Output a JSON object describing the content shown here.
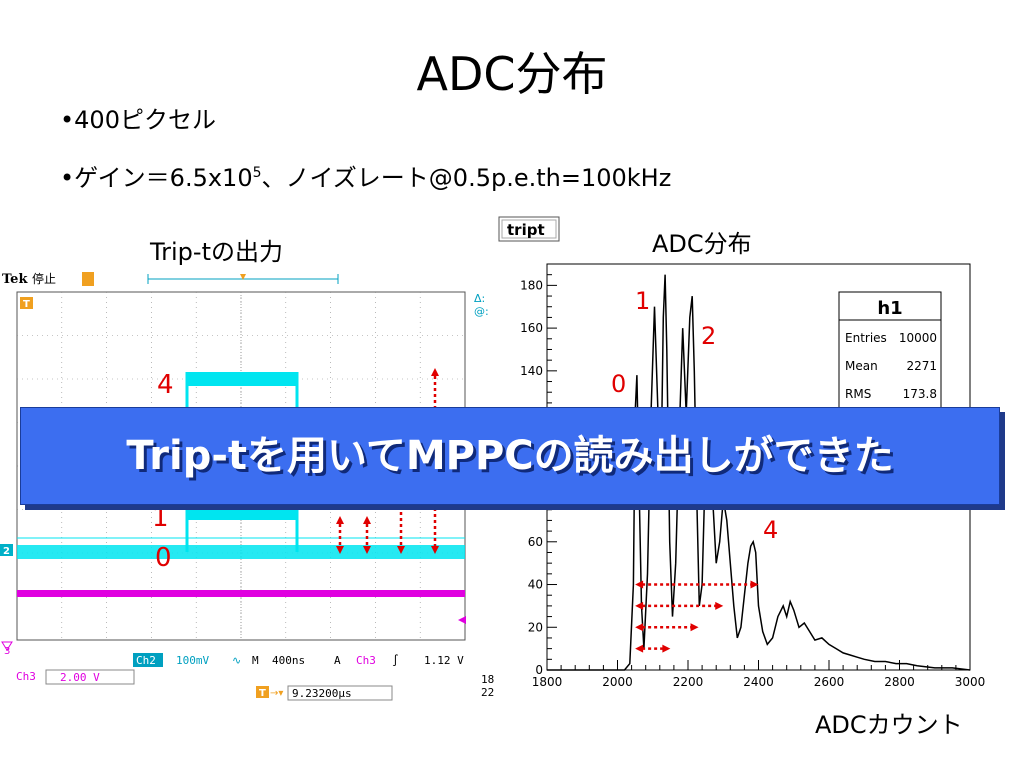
{
  "slide": {
    "title": "ADC分布",
    "bullets": [
      {
        "text": "•400ピクセル"
      },
      {
        "prefix": "•ゲイン＝6.5x10",
        "sup": "5",
        "suffix": "、ノイズレート@0.5p.e.th=100kHz"
      }
    ]
  },
  "oscilloscope": {
    "caption": "Trip-tの出力",
    "brand": "Tek",
    "status": "停止",
    "labels": [
      "0",
      "1",
      "4"
    ],
    "ch1_marker": "2",
    "ch3_marker": "3",
    "trigger_marker": "T",
    "readout_right_top": "Δ:",
    "readout_right_bottom": "@:",
    "ch2_label": "Ch2",
    "ch2_scale": "100mV",
    "ch2_coupling": "∿",
    "time_prefix": "M",
    "time_scale": "400ns",
    "trigger_mode": "A",
    "trig_channel": "Ch3",
    "trig_slope": "∫",
    "trig_level": "1.12 V",
    "ch3_label": "Ch3",
    "ch3_scale": "2.00 V",
    "position_label": "T",
    "position_value": "9.23200μs",
    "date_top": "18",
    "date_bottom": "22",
    "colors": {
      "cyan": "#00e5f0",
      "magenta": "#e000e0",
      "grid": "#8c8c8c"
    }
  },
  "histogram": {
    "caption": "ADC分布",
    "tag": "tript",
    "xunit": "ADCカウント",
    "stats_title": "h1",
    "stats": [
      {
        "label": "Entries",
        "value": "10000"
      },
      {
        "label": "Mean",
        "value": "2271"
      },
      {
        "label": "RMS",
        "value": "173.8"
      }
    ],
    "peak_labels": [
      "0",
      "1",
      "2",
      "4"
    ]
  },
  "banner": {
    "text": "Trip-tを用いてMPPCの読み出しができた"
  },
  "chart_data": {
    "type": "line",
    "title": "",
    "xlabel": "ADCカウント",
    "ylabel": "",
    "xlim": [
      1800,
      3000
    ],
    "ylim": [
      0,
      190
    ],
    "xticks": [
      1800,
      2000,
      2200,
      2400,
      2600,
      2800,
      3000
    ],
    "yticks": [
      0,
      20,
      40,
      60,
      80,
      100,
      120,
      140,
      160,
      180
    ],
    "x": [
      1800,
      2020,
      2035,
      2045,
      2050,
      2055,
      2060,
      2068,
      2075,
      2085,
      2095,
      2105,
      2115,
      2125,
      2130,
      2135,
      2140,
      2148,
      2156,
      2165,
      2175,
      2185,
      2195,
      2205,
      2212,
      2218,
      2225,
      2232,
      2240,
      2250,
      2260,
      2270,
      2280,
      2290,
      2300,
      2310,
      2320,
      2330,
      2340,
      2350,
      2360,
      2370,
      2378,
      2385,
      2392,
      2400,
      2412,
      2425,
      2440,
      2455,
      2470,
      2480,
      2490,
      2500,
      2515,
      2530,
      2545,
      2560,
      2580,
      2600,
      2620,
      2640,
      2660,
      2680,
      2700,
      2730,
      2760,
      2790,
      2820,
      2850,
      2900,
      2950,
      3000
    ],
    "series": [
      {
        "values": [
          0,
          0,
          3,
          40,
          120,
          138,
          95,
          30,
          10,
          45,
          120,
          170,
          120,
          110,
          165,
          185,
          150,
          60,
          25,
          50,
          110,
          160,
          120,
          165,
          175,
          140,
          80,
          30,
          40,
          100,
          120,
          80,
          50,
          60,
          80,
          70,
          50,
          30,
          15,
          20,
          35,
          50,
          58,
          60,
          55,
          30,
          18,
          12,
          15,
          25,
          30,
          25,
          32,
          28,
          20,
          22,
          18,
          14,
          15,
          12,
          10,
          8,
          7,
          6,
          5,
          4,
          4,
          3,
          3,
          2,
          1,
          1,
          0
        ]
      }
    ],
    "grid": false
  }
}
